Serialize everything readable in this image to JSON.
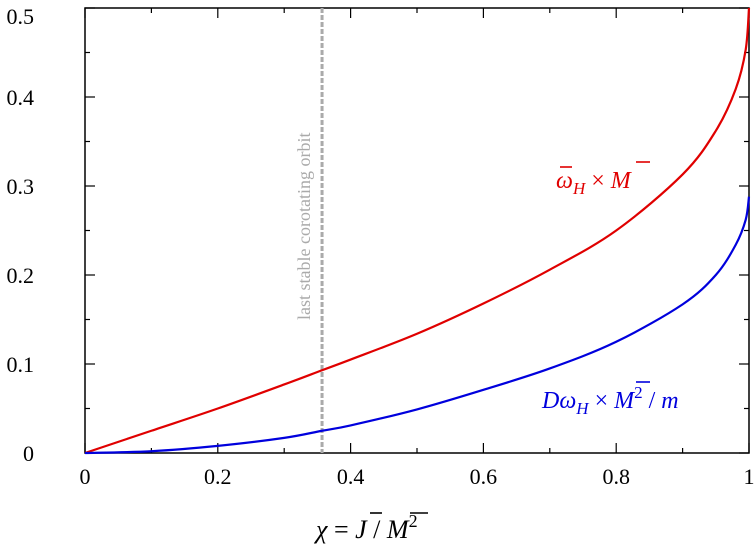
{
  "chart_data": {
    "type": "line",
    "xlim": [
      0,
      1
    ],
    "ylim": [
      0,
      0.5
    ],
    "x_ticks": [
      "0",
      "0.2",
      "0.4",
      "0.6",
      "0.8",
      "1"
    ],
    "y_ticks": [
      "0",
      "0.1",
      "0.2",
      "0.3",
      "0.4",
      "0.5"
    ],
    "xlabel": {
      "chi": "χ",
      "eq": " = ",
      "J": "J",
      "slash": " / ",
      "M": "M",
      "exp": "2"
    },
    "grid": false,
    "legend": "none",
    "series": [
      {
        "color": "#e00000",
        "label_parts": {
          "omega": "ω",
          "sub": "H",
          "times": " × ",
          "M": "M"
        },
        "x": [
          0,
          0.1,
          0.2,
          0.3,
          0.357,
          0.4,
          0.5,
          0.6,
          0.7,
          0.8,
          0.9,
          0.95,
          0.98,
          0.995,
          1.0
        ],
        "y": [
          0,
          0.025,
          0.05,
          0.077,
          0.093,
          0.105,
          0.134,
          0.168,
          0.206,
          0.25,
          0.313,
          0.362,
          0.409,
          0.453,
          0.5
        ]
      },
      {
        "color": "#0000dd",
        "label_parts": {
          "D": "D",
          "omega": "ω",
          "sub": "H",
          "times": " × ",
          "M": "M",
          "exp": "2",
          "slash": " / ",
          "m": "m"
        },
        "x": [
          0,
          0.1,
          0.2,
          0.3,
          0.357,
          0.4,
          0.5,
          0.6,
          0.7,
          0.8,
          0.9,
          0.95,
          0.98,
          0.995,
          1.0
        ],
        "y": [
          0,
          0.002,
          0.008,
          0.017,
          0.025,
          0.031,
          0.049,
          0.071,
          0.095,
          0.125,
          0.167,
          0.2,
          0.234,
          0.262,
          0.288
        ]
      }
    ],
    "annotation": {
      "text": "last stable corotating orbit",
      "x": 0.357,
      "color": "#aaaaaa"
    }
  }
}
